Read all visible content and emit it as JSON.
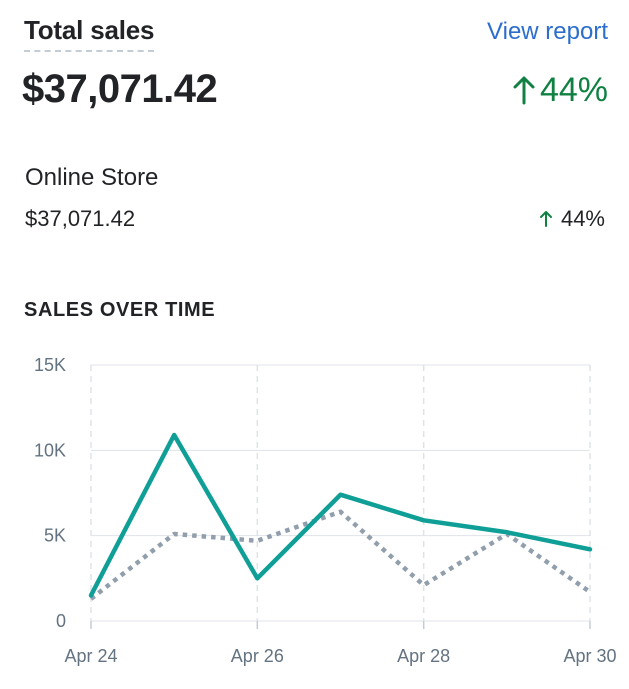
{
  "header": {
    "title": "Total sales",
    "view_report_label": "View report"
  },
  "summary": {
    "total_value": "$37,071.42",
    "total_change": "44%",
    "change_color": "#108043"
  },
  "channels": [
    {
      "name": "Online Store",
      "value": "$37,071.42",
      "change": "44%"
    }
  ],
  "section_title": "SALES OVER TIME",
  "chart_data": {
    "type": "line",
    "title": "",
    "xlabel": "",
    "ylabel": "",
    "x": [
      "Apr 24",
      "Apr 25",
      "Apr 26",
      "Apr 27",
      "Apr 28",
      "Apr 29",
      "Apr 30"
    ],
    "x_tick_labels": [
      "Apr 24",
      "Apr 26",
      "Apr 28",
      "Apr 30"
    ],
    "y_tick_labels": [
      "0",
      "5K",
      "10K",
      "15K"
    ],
    "y_ticks": [
      0,
      5000,
      10000,
      15000
    ],
    "ylim": [
      0,
      15000
    ],
    "grid": true,
    "series": [
      {
        "color": "#0f9f97",
        "style": "solid",
        "values": [
          1500,
          10900,
          2500,
          7400,
          5900,
          5200,
          4200
        ]
      },
      {
        "color": "#919eab",
        "style": "dotted",
        "values": [
          1300,
          5100,
          4700,
          6400,
          2100,
          5100,
          1700
        ]
      }
    ]
  }
}
